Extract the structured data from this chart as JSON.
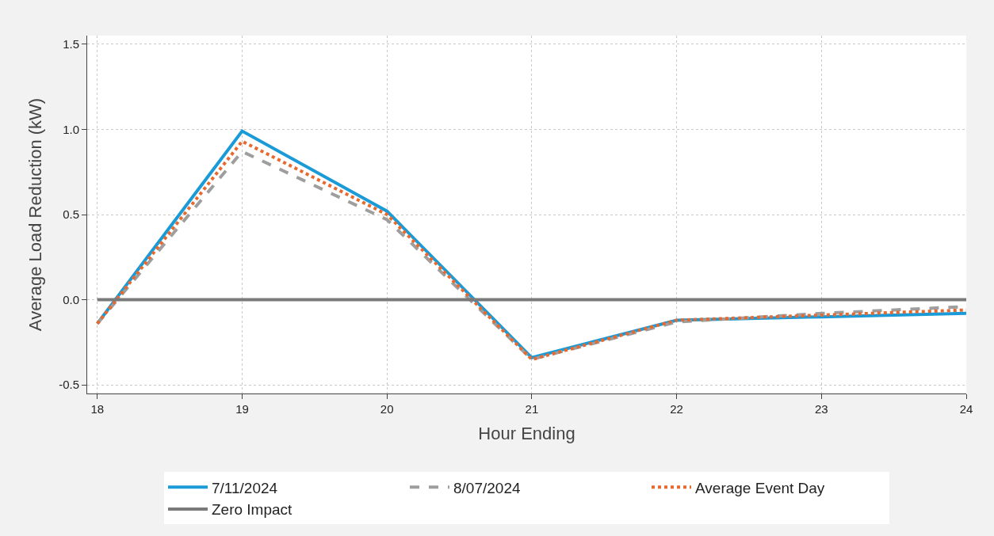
{
  "chart_data": {
    "type": "line",
    "xlabel": "Hour Ending",
    "ylabel": "Average Load Reduction (kW)",
    "x": [
      18,
      19,
      20,
      21,
      22,
      23,
      24
    ],
    "series": [
      {
        "name": "7/11/2024",
        "color": "#1a9bd7",
        "line_style": "solid",
        "values": [
          -0.14,
          0.99,
          0.52,
          -0.34,
          -0.12,
          -0.1,
          -0.08
        ]
      },
      {
        "name": "8/07/2024",
        "color": "#9e9e9e",
        "line_style": "dashed",
        "values": [
          -0.14,
          0.87,
          0.47,
          -0.35,
          -0.13,
          -0.08,
          -0.04
        ]
      },
      {
        "name": "Average Event Day",
        "color": "#e8692e",
        "line_style": "dotted",
        "values": [
          -0.14,
          0.93,
          0.5,
          -0.35,
          -0.12,
          -0.09,
          -0.06
        ]
      },
      {
        "name": "Zero Impact",
        "color": "#7a7a7a",
        "line_style": "solid",
        "values": [
          0,
          0,
          0,
          0,
          0,
          0,
          0
        ]
      }
    ],
    "xlim": [
      17.93,
      24
    ],
    "xticks": [
      18,
      19,
      20,
      21,
      22,
      23,
      24
    ],
    "ylim": [
      -0.55,
      1.55
    ],
    "yticks": [
      {
        "value": -0.5,
        "label": "-0.5"
      },
      {
        "value": 0,
        "label": "0.0"
      },
      {
        "value": 0.5,
        "label": "0.5"
      },
      {
        "value": 1,
        "label": "1.0"
      },
      {
        "value": 1.5,
        "label": "1.5"
      }
    ],
    "grid": true,
    "legend": "bottom",
    "marker": "none"
  }
}
